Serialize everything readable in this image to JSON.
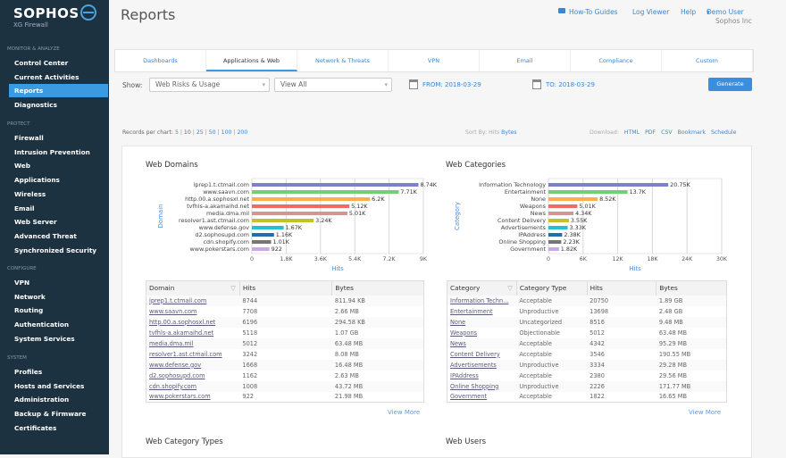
{
  "sidebar": {
    "brand": "SOPHOS",
    "product": "XG Firewall",
    "sections": [
      {
        "title": "MONITOR & ANALYZE",
        "items": [
          "Control Center",
          "Current Activities",
          "Reports",
          "Diagnostics"
        ]
      },
      {
        "title": "PROTECT",
        "items": [
          "Firewall",
          "Intrusion Prevention",
          "Web",
          "Applications",
          "Wireless",
          "Email",
          "Web Server",
          "Advanced Threat",
          "Synchronized Security"
        ]
      },
      {
        "title": "CONFIGURE",
        "items": [
          "VPN",
          "Network",
          "Routing",
          "Authentication",
          "System Services"
        ]
      },
      {
        "title": "SYSTEM",
        "items": [
          "Profiles",
          "Hosts and Services",
          "Administration",
          "Backup & Firmware",
          "Certificates"
        ]
      }
    ],
    "active": "Reports"
  },
  "header": {
    "title": "Reports",
    "how_to": "How-To Guides",
    "log_viewer": "Log Viewer",
    "help": "Help",
    "user": "Demo User",
    "company": "Sophos Inc"
  },
  "tabs": [
    "Dashboards",
    "Applications & Web",
    "Network & Threats",
    "VPN",
    "Email",
    "Compliance",
    "Custom"
  ],
  "active_tab": "Applications & Web",
  "filters": {
    "show_label": "Show:",
    "report": "Web Risks & Usage",
    "view": "View All",
    "from": "FROM: 2018-03-29",
    "to": "TO: 2018-03-29",
    "generate": "Generate"
  },
  "records": {
    "label": "Records per chart:",
    "options": [
      "5",
      "10",
      "25",
      "50",
      "100",
      "200"
    ],
    "selected": "10"
  },
  "sort": {
    "label": "Sort By:",
    "hits": "Hits",
    "bytes": "Bytes"
  },
  "download": {
    "label": "Download:",
    "links": [
      "HTML",
      "PDF",
      "CSV",
      "Bookmark",
      "Schedule"
    ]
  },
  "colors": [
    "#7b80cf",
    "#72cf72",
    "#ffad4d",
    "#ef6b6b",
    "#c99a92",
    "#c2c22c",
    "#22c1cc",
    "#1f6fb0",
    "#777777",
    "#c8a9e0"
  ],
  "chart_data": [
    {
      "type": "bar",
      "title": "Web Domains",
      "xlabel": "Hits",
      "ylabel": "Domain",
      "xlim": [
        0,
        9000
      ],
      "ticks": [
        "0",
        "1.8K",
        "3.6K",
        "5.4K",
        "7.2K",
        "9K"
      ],
      "tick_values": [
        0,
        1800,
        3600,
        5400,
        7200,
        9000
      ],
      "categories": [
        "iprep1.t.ctmail.com",
        "www.saavn.com",
        "http.00.a.sophosxl.net",
        "tvfhls-a.akamaihd.net",
        "media.dma.mil",
        "resolver1.ast.ctmail.com",
        "www.defense.gov",
        "d2.sophosupd.com",
        "cdn.shopify.com",
        "www.pokerstars.com"
      ],
      "values": [
        8744,
        7708,
        6196,
        5118,
        5012,
        3242,
        1668,
        1162,
        1008,
        922
      ],
      "labels": [
        "8.74K",
        "7.71K",
        "6.2K",
        "5.12K",
        "5.01K",
        "3.24K",
        "1.67K",
        "1.16K",
        "1.01K",
        "922"
      ]
    },
    {
      "type": "bar",
      "title": "Web Categories",
      "xlabel": "Hits",
      "ylabel": "Category",
      "xlim": [
        0,
        30000
      ],
      "ticks": [
        "0",
        "6K",
        "12K",
        "18K",
        "24K",
        "30K"
      ],
      "tick_values": [
        0,
        6000,
        12000,
        18000,
        24000,
        30000
      ],
      "categories": [
        "Information Technology",
        "Entertainment",
        "None",
        "Weapons",
        "News",
        "Content Delivery",
        "Advertisements",
        "IPAddress",
        "Online Shopping",
        "Government"
      ],
      "values": [
        20750,
        13698,
        8516,
        5012,
        4342,
        3546,
        3334,
        2380,
        2226,
        1822
      ],
      "labels": [
        "20.75K",
        "13.7K",
        "8.52K",
        "5.01K",
        "4.34K",
        "3.55K",
        "3.33K",
        "2.38K",
        "2.23K",
        "1.82K"
      ]
    }
  ],
  "domain_table": {
    "headers": [
      "Domain",
      "Hits",
      "Bytes"
    ],
    "rows": [
      [
        "iprep1.t.ctmail.com",
        "8744",
        "811.94 KB"
      ],
      [
        "www.saavn.com",
        "7708",
        "2.66 MB"
      ],
      [
        "http.00.a.sophosxl.net",
        "6196",
        "294.58 KB"
      ],
      [
        "tvfhls-a.akamaihd.net",
        "5118",
        "1.07 GB"
      ],
      [
        "media.dma.mil",
        "5012",
        "63.48 MB"
      ],
      [
        "resolver1.ast.ctmail.com",
        "3242",
        "8.08 MB"
      ],
      [
        "www.defense.gov",
        "1668",
        "16.48 MB"
      ],
      [
        "d2.sophosupd.com",
        "1162",
        "2.63 MB"
      ],
      [
        "cdn.shopify.com",
        "1008",
        "43.72 MB"
      ],
      [
        "www.pokerstars.com",
        "922",
        "21.98 MB"
      ]
    ],
    "more": "View More"
  },
  "category_table": {
    "headers": [
      "Category",
      "Category Type",
      "Hits",
      "Bytes"
    ],
    "rows": [
      [
        "Information Techn...",
        "Acceptable",
        "20750",
        "1.89 GB"
      ],
      [
        "Entertainment",
        "Unproductive",
        "13698",
        "2.48 GB"
      ],
      [
        "None",
        "Uncategorized",
        "8516",
        "9.48 MB"
      ],
      [
        "Weapons",
        "Objectionable",
        "5012",
        "63.48 MB"
      ],
      [
        "News",
        "Acceptable",
        "4342",
        "95.29 MB"
      ],
      [
        "Content Delivery",
        "Acceptable",
        "3546",
        "190.55 MB"
      ],
      [
        "Advertisements",
        "Unproductive",
        "3334",
        "29.28 MB"
      ],
      [
        "IPAddress",
        "Acceptable",
        "2380",
        "29.56 MB"
      ],
      [
        "Online Shopping",
        "Unproductive",
        "2226",
        "171.77 MB"
      ],
      [
        "Government",
        "Acceptable",
        "1822",
        "16.65 MB"
      ]
    ],
    "more": "View More"
  },
  "sections_below": [
    "Web Category Types",
    "Web Users"
  ]
}
